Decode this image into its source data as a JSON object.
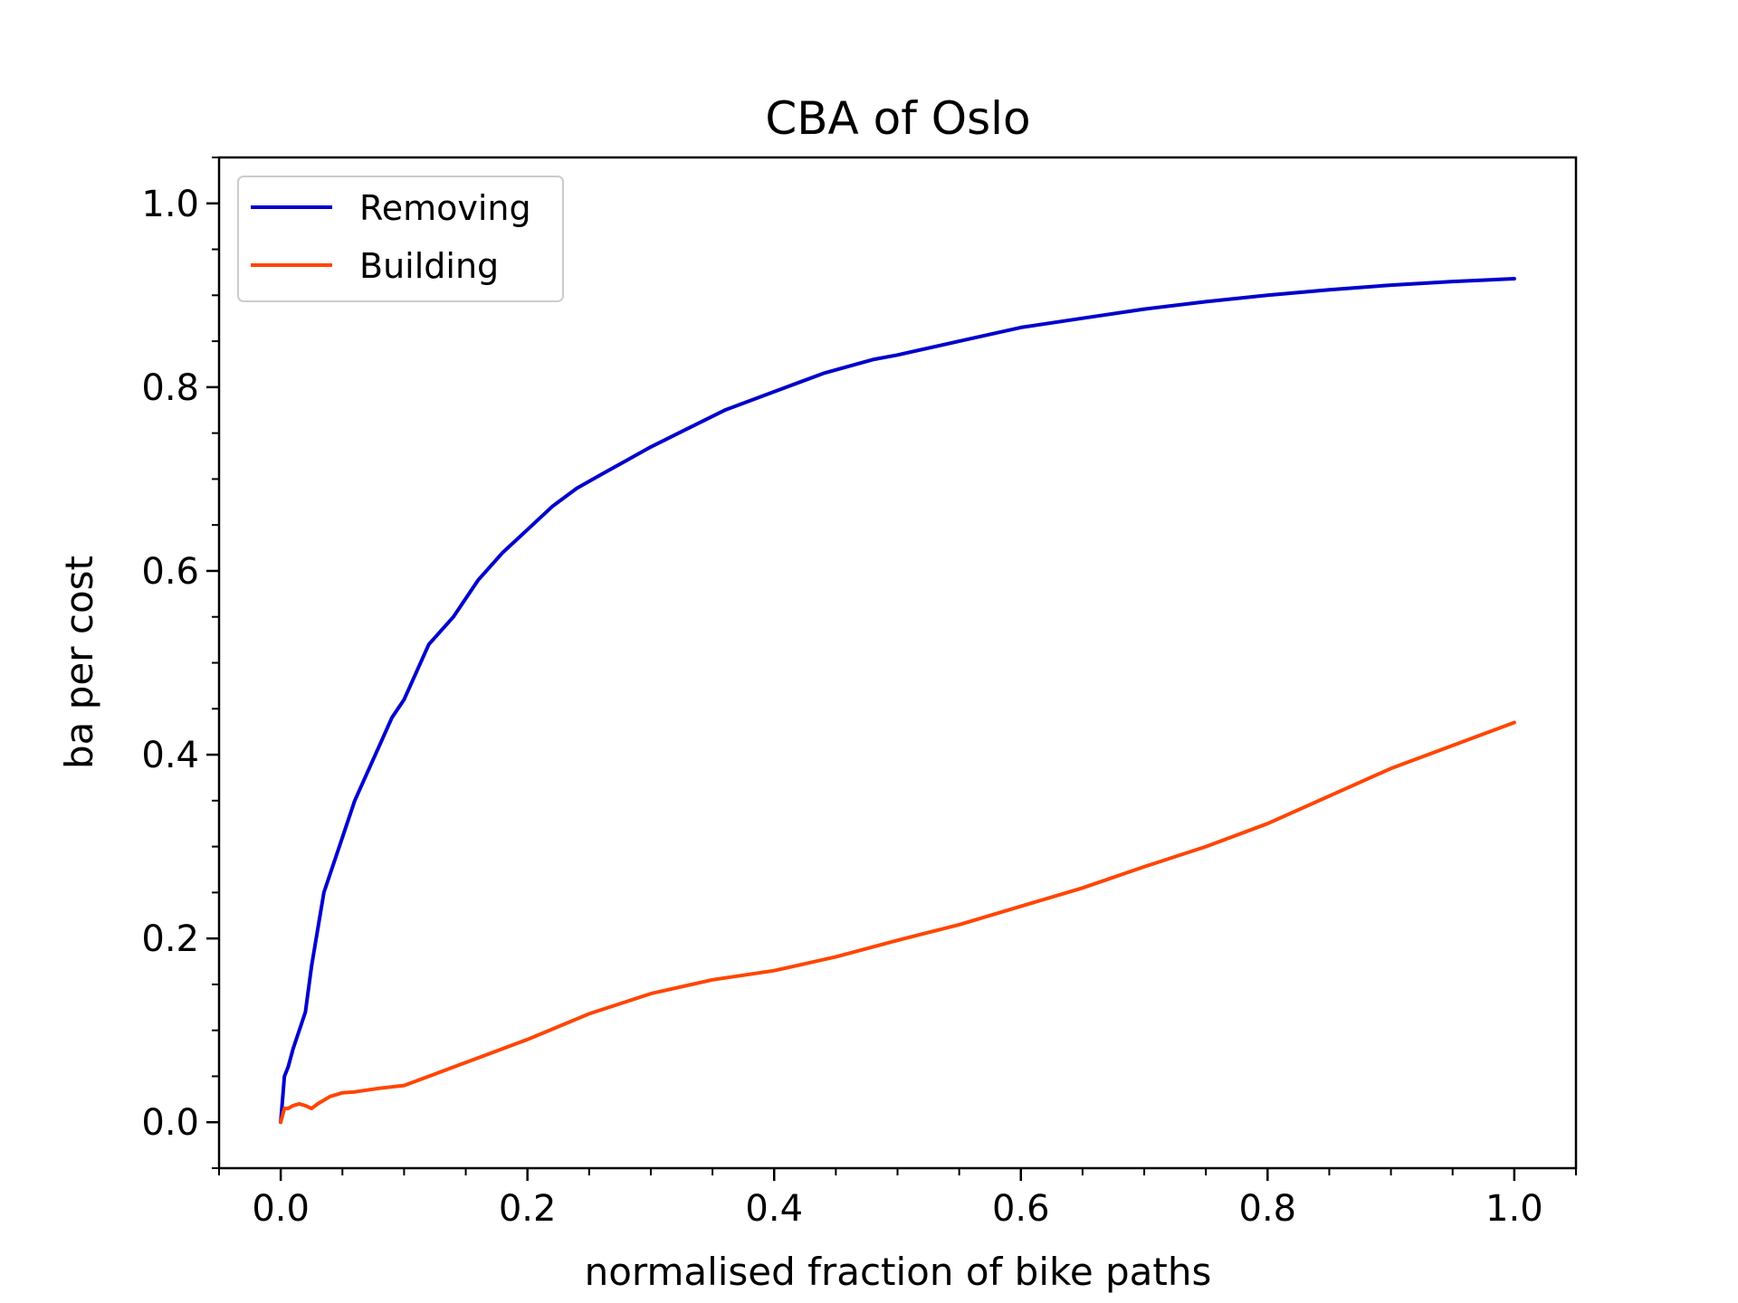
{
  "chart_data": {
    "type": "line",
    "title": "CBA of Oslo",
    "xlabel": "normalised fraction of bike paths",
    "ylabel": "ba per cost",
    "xlim": [
      -0.05,
      1.05
    ],
    "ylim": [
      -0.05,
      1.05
    ],
    "x_ticks": [
      0.0,
      0.2,
      0.4,
      0.6,
      0.8,
      1.0
    ],
    "x_tick_labels": [
      "0.0",
      "0.2",
      "0.4",
      "0.6",
      "0.8",
      "1.0"
    ],
    "y_ticks": [
      0.0,
      0.2,
      0.4,
      0.6,
      0.8,
      1.0
    ],
    "y_tick_labels": [
      "0.0",
      "0.2",
      "0.4",
      "0.6",
      "0.8",
      "1.0"
    ],
    "grid": false,
    "legend_position": "top-left",
    "series": [
      {
        "name": "Removing",
        "color": "#0000cc",
        "x": [
          0.0,
          0.003,
          0.006,
          0.01,
          0.015,
          0.02,
          0.025,
          0.03,
          0.035,
          0.04,
          0.05,
          0.06,
          0.07,
          0.08,
          0.09,
          0.1,
          0.12,
          0.14,
          0.16,
          0.18,
          0.2,
          0.22,
          0.24,
          0.26,
          0.28,
          0.3,
          0.33,
          0.36,
          0.4,
          0.44,
          0.48,
          0.5,
          0.55,
          0.6,
          0.65,
          0.7,
          0.75,
          0.8,
          0.85,
          0.9,
          0.95,
          1.0
        ],
        "y": [
          0.0,
          0.05,
          0.06,
          0.08,
          0.1,
          0.12,
          0.17,
          0.21,
          0.25,
          0.27,
          0.31,
          0.35,
          0.38,
          0.41,
          0.44,
          0.46,
          0.52,
          0.55,
          0.59,
          0.62,
          0.645,
          0.67,
          0.69,
          0.705,
          0.72,
          0.735,
          0.755,
          0.775,
          0.795,
          0.815,
          0.83,
          0.835,
          0.85,
          0.865,
          0.875,
          0.885,
          0.893,
          0.9,
          0.906,
          0.911,
          0.915,
          0.918
        ]
      },
      {
        "name": "Building",
        "color": "#ff4500",
        "x": [
          0.0,
          0.003,
          0.006,
          0.01,
          0.015,
          0.02,
          0.025,
          0.03,
          0.04,
          0.05,
          0.06,
          0.08,
          0.1,
          0.12,
          0.15,
          0.2,
          0.25,
          0.3,
          0.35,
          0.4,
          0.45,
          0.5,
          0.55,
          0.6,
          0.65,
          0.7,
          0.75,
          0.8,
          0.85,
          0.9,
          0.95,
          1.0
        ],
        "y": [
          0.0,
          0.015,
          0.015,
          0.018,
          0.02,
          0.018,
          0.015,
          0.02,
          0.028,
          0.032,
          0.033,
          0.037,
          0.04,
          0.05,
          0.065,
          0.09,
          0.118,
          0.14,
          0.155,
          0.165,
          0.18,
          0.198,
          0.215,
          0.235,
          0.255,
          0.278,
          0.3,
          0.325,
          0.355,
          0.385,
          0.41,
          0.435
        ]
      }
    ]
  }
}
